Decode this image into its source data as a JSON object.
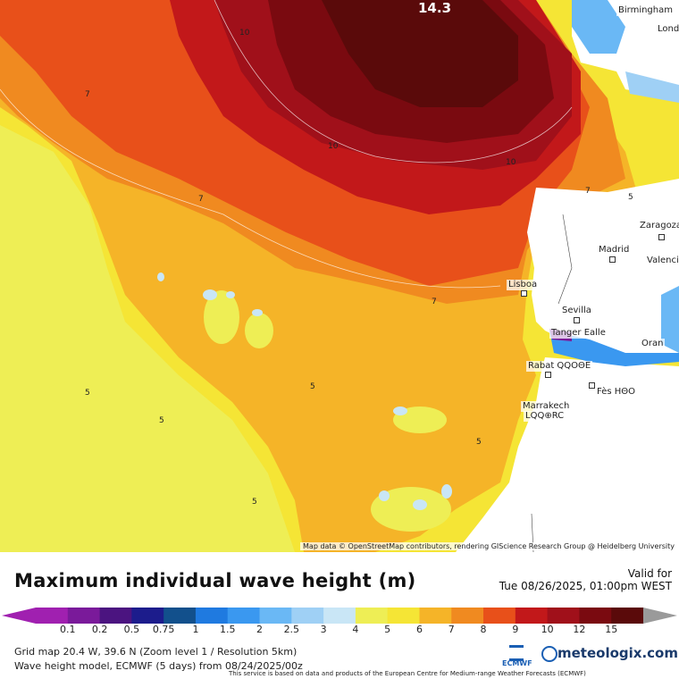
{
  "map": {
    "peak_value": "14.3",
    "attribution": "Map data © OpenStreetMap contributors, rendering GIScience Research Group @ Heidelberg University",
    "cities": [
      {
        "name": "Birmingham"
      },
      {
        "name": "Lond"
      },
      {
        "name": "Zaragoza"
      },
      {
        "name": "Madrid"
      },
      {
        "name": "Valencia"
      },
      {
        "name": "Lisboa"
      },
      {
        "name": "Sevilla"
      },
      {
        "name": "Tanger Ealle"
      },
      {
        "name": "Oran"
      },
      {
        "name": "Rabat QQOΘE"
      },
      {
        "name": "Fès HΘO"
      },
      {
        "name": "Marrakech"
      },
      {
        "name": "LQQ⊕RC"
      }
    ],
    "isolines": [
      "10",
      "10",
      "10",
      "7",
      "7",
      "7",
      "7",
      "5",
      "5",
      "5",
      "5",
      "5",
      "5"
    ]
  },
  "legend": {
    "title": "Maximum individual wave height (m)",
    "valid_label": "Valid for",
    "valid_date": "Tue 08/26/2025, 01:00pm WEST",
    "ticks": [
      "0.1",
      "0.2",
      "0.5",
      "0.75",
      "1",
      "1.5",
      "2",
      "2.5",
      "3",
      "4",
      "5",
      "6",
      "7",
      "8",
      "9",
      "10",
      "12",
      "15"
    ],
    "colors": [
      "#a020b0",
      "#7a1a9a",
      "#4b1480",
      "#1c1c8c",
      "#12508c",
      "#1f7ae0",
      "#3a98f0",
      "#6ab8f5",
      "#9fd0f5",
      "#c9e6f6",
      "#eeee55",
      "#f5e535",
      "#f5b428",
      "#f08a20",
      "#e8501a",
      "#c2181a",
      "#a0101a",
      "#7a0a10",
      "#5a0a0a"
    ],
    "grid_info": "Grid map 20.4 W, 39.6 N (Zoom level 1 / Resolution 5km)",
    "model_info": "Wave height model, ECMWF (5 days) from 08/24/2025/00z",
    "credit": "This service is based on data and products of the European Centre for Medium-range Weather Forecasts (ECMWF)",
    "logo": "meteologix.com",
    "ecmwf_label": "ECMWF"
  }
}
